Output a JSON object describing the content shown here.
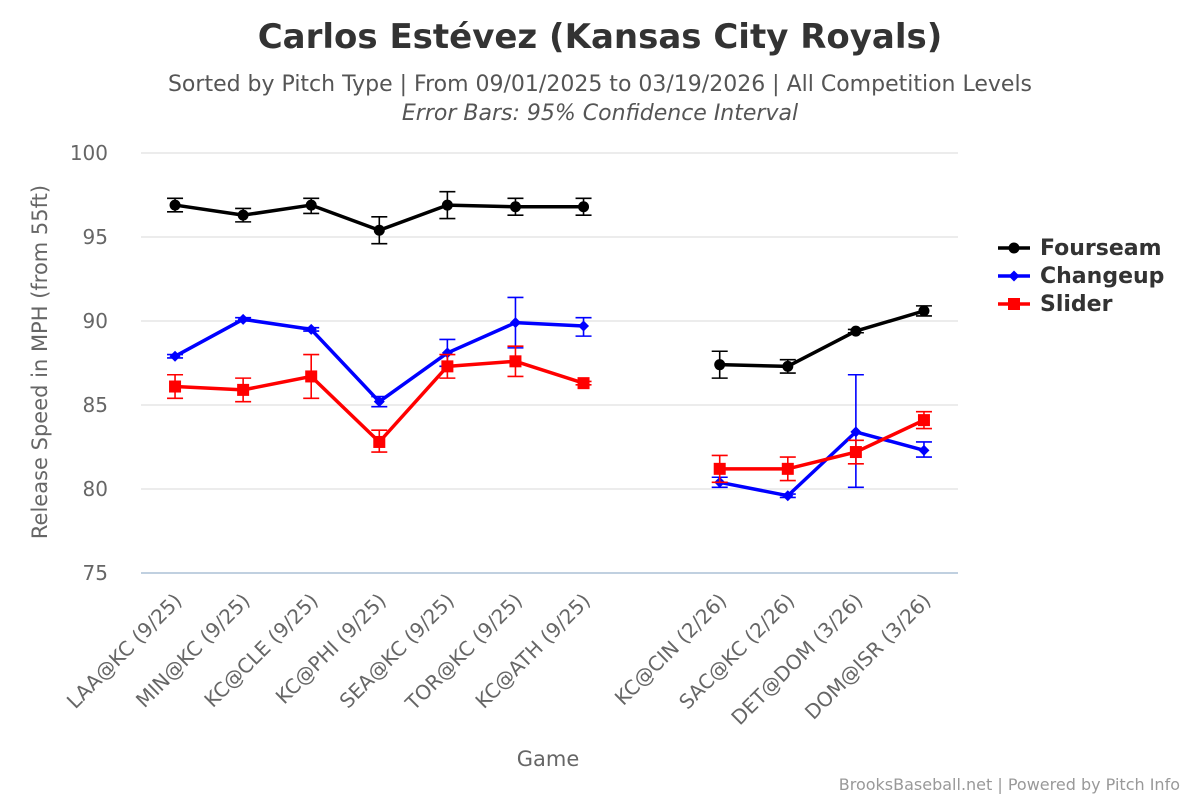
{
  "chart_data": {
    "type": "line",
    "title": "Carlos Estévez (Kansas City Royals)",
    "subtitle": "Sorted by Pitch Type | From 09/01/2025 to 03/19/2026 | All Competition Levels",
    "subtitle2": "Error Bars: 95% Confidence Interval",
    "xlabel": "Game",
    "ylabel": "Release Speed in MPH (from 55ft)",
    "ylim": [
      75,
      100
    ],
    "yticks": [
      75,
      80,
      85,
      90,
      95,
      100
    ],
    "categories": [
      "LAA@KC (9/25)",
      "MIN@KC (9/25)",
      "KC@CLE (9/25)",
      "KC@PHI (9/25)",
      "SEA@KC (9/25)",
      "TOR@KC (9/25)",
      "KC@ATH (9/25)",
      "",
      "KC@CIN (2/26)",
      "SAC@KC (2/26)",
      "DET@DOM (3/26)",
      "DOM@ISR (3/26)"
    ],
    "legend_position": "right",
    "series": [
      {
        "name": "Fourseam",
        "color": "#000000",
        "marker": "circle",
        "values": [
          96.9,
          96.3,
          96.9,
          95.4,
          96.9,
          96.8,
          96.8,
          null,
          87.4,
          87.3,
          89.4,
          90.6
        ],
        "error_low": [
          96.5,
          95.9,
          96.4,
          94.6,
          96.1,
          96.3,
          96.3,
          null,
          86.6,
          86.9,
          89.3,
          90.3
        ],
        "error_high": [
          97.3,
          96.7,
          97.3,
          96.2,
          97.7,
          97.3,
          97.3,
          null,
          88.2,
          87.7,
          89.5,
          90.9
        ]
      },
      {
        "name": "Changeup",
        "color": "#0000ff",
        "marker": "diamond",
        "values": [
          87.9,
          90.1,
          89.5,
          85.2,
          88.1,
          89.9,
          89.7,
          null,
          80.4,
          79.6,
          83.4,
          82.3
        ],
        "error_low": [
          87.8,
          90.0,
          89.4,
          84.9,
          87.3,
          88.4,
          89.1,
          null,
          80.1,
          79.5,
          80.1,
          81.9
        ],
        "error_high": [
          88.0,
          90.2,
          89.6,
          85.5,
          88.9,
          91.4,
          90.2,
          null,
          80.7,
          79.7,
          86.8,
          82.8
        ]
      },
      {
        "name": "Slider",
        "color": "#ff0000",
        "marker": "square",
        "values": [
          86.1,
          85.9,
          86.7,
          82.8,
          87.3,
          87.6,
          86.3,
          null,
          81.2,
          81.2,
          82.2,
          84.1
        ],
        "error_low": [
          85.4,
          85.2,
          85.4,
          82.2,
          86.6,
          86.7,
          86.2,
          null,
          80.4,
          80.5,
          81.5,
          83.6
        ],
        "error_high": [
          86.8,
          86.6,
          88.0,
          83.5,
          88.0,
          88.5,
          86.4,
          null,
          82.0,
          81.9,
          82.9,
          84.6
        ]
      }
    ]
  },
  "credits": "BrooksBaseball.net | Powered by Pitch Info"
}
